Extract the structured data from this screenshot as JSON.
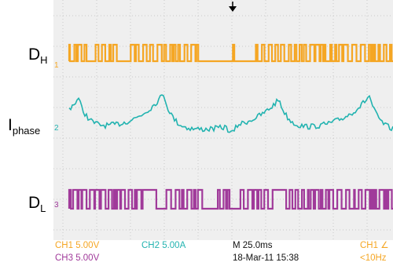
{
  "labels": {
    "dh": {
      "main": "D",
      "sub": "H"
    },
    "iphase": {
      "main": "I",
      "sub": "phase"
    },
    "dl": {
      "main": "D",
      "sub": "L"
    }
  },
  "markers": {
    "ch1": "1",
    "ch2": "2",
    "ch3": "3"
  },
  "readout": {
    "ch1": "CH1  5.00V",
    "ch2": "CH2  5.00A",
    "timebase": "M 25.0ms",
    "trigger": "CH1 ∠",
    "ch3": "CH3  5.00V",
    "date": "18-Mar-11 15:38",
    "freq": "<10Hz"
  }
}
